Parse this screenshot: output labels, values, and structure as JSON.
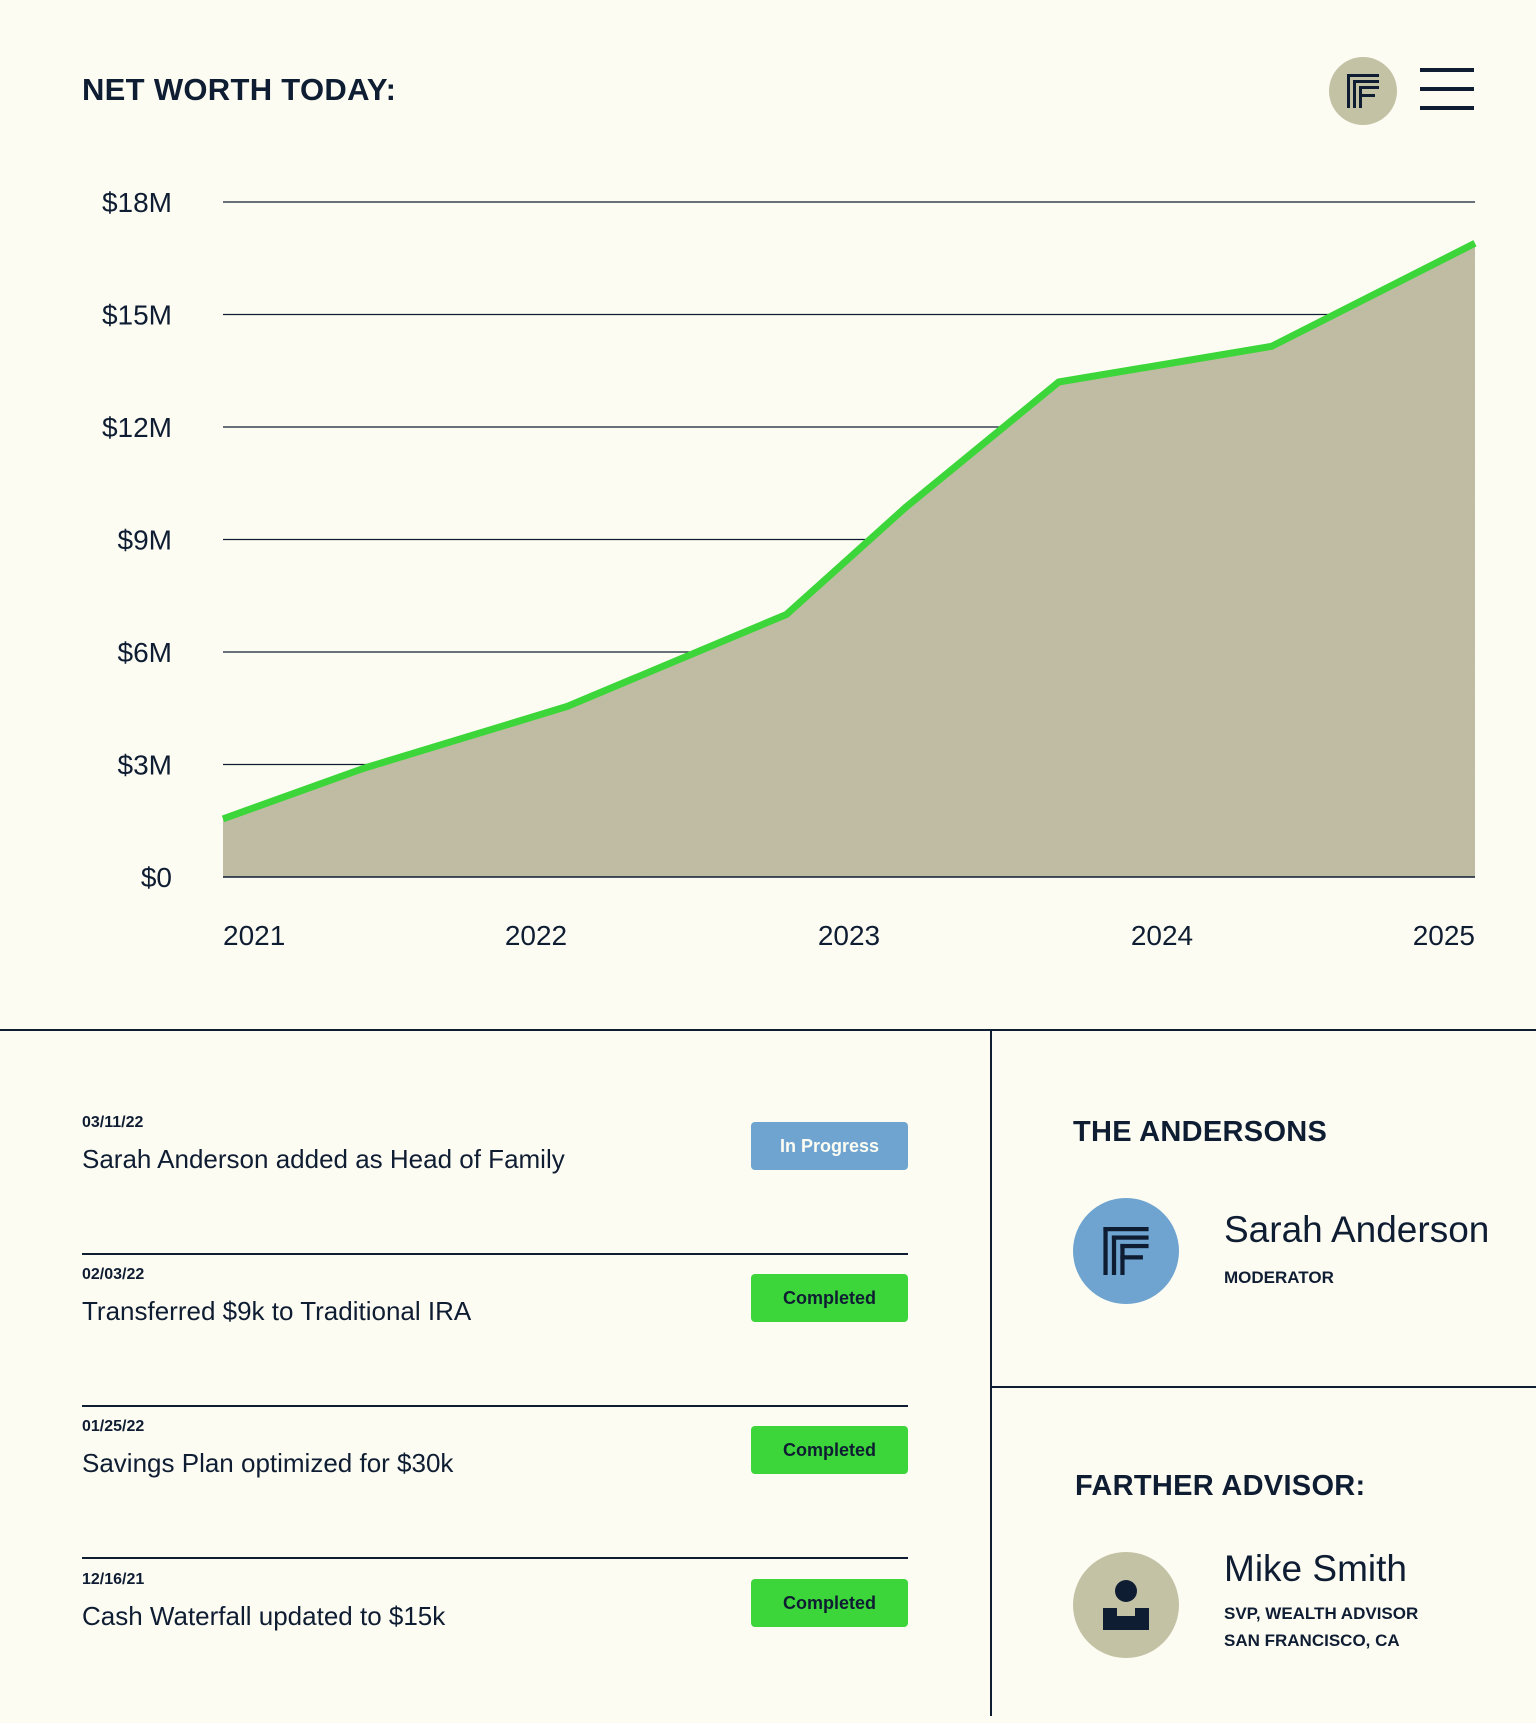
{
  "header": {
    "title": "NET WORTH TODAY:",
    "logo_icon": "farther-logo-icon",
    "menu_icon": "hamburger-menu-icon"
  },
  "colors": {
    "background": "#fdfcf3",
    "ink": "#0f1d33",
    "area_fill": "#bfbca2",
    "line": "#3dd63a",
    "in_progress": "#6ea4cf",
    "completed": "#3dd63a",
    "logo_badge": "#c4c2a5"
  },
  "chart_data": {
    "type": "area",
    "title": "",
    "xlabel": "",
    "ylabel": "",
    "x_ticks": [
      "2021",
      "2022",
      "2023",
      "2024",
      "2025"
    ],
    "y_ticks": [
      "$0",
      "$3M",
      "$6M",
      "$9M",
      "$12M",
      "$15M",
      "$18M"
    ],
    "ylim": [
      0,
      18
    ],
    "xlim": [
      2021,
      2025
    ],
    "grid": true,
    "legend": "none",
    "series": [
      {
        "x": [
          2021.0,
          2021.45,
          2022.1,
          2022.8,
          2023.18,
          2023.67,
          2024.35,
          2025.0
        ],
        "y": [
          1.55,
          2.9,
          4.55,
          7.0,
          9.85,
          13.2,
          14.15,
          16.9
        ]
      }
    ]
  },
  "activities": [
    {
      "date": "03/11/22",
      "text": "Sarah Anderson added as Head of Family",
      "status": "In Progress"
    },
    {
      "date": "02/03/22",
      "text": "Transferred $9k to Traditional IRA",
      "status": "Completed"
    },
    {
      "date": "01/25/22",
      "text": "Savings Plan optimized for $30k",
      "status": "Completed"
    },
    {
      "date": "12/16/21",
      "text": "Cash Waterfall updated to $15k",
      "status": "Completed"
    }
  ],
  "family": {
    "title": "THE ANDERSONS",
    "avatar_icon": "farther-logo-icon",
    "name": "Sarah Anderson",
    "role": "MODERATOR"
  },
  "advisor": {
    "title": "FARTHER ADVISOR:",
    "avatar_icon": "person-icon",
    "name": "Mike Smith",
    "role_line1": "SVP, WEALTH ADVISOR",
    "role_line2": "SAN FRANCISCO, CA"
  }
}
